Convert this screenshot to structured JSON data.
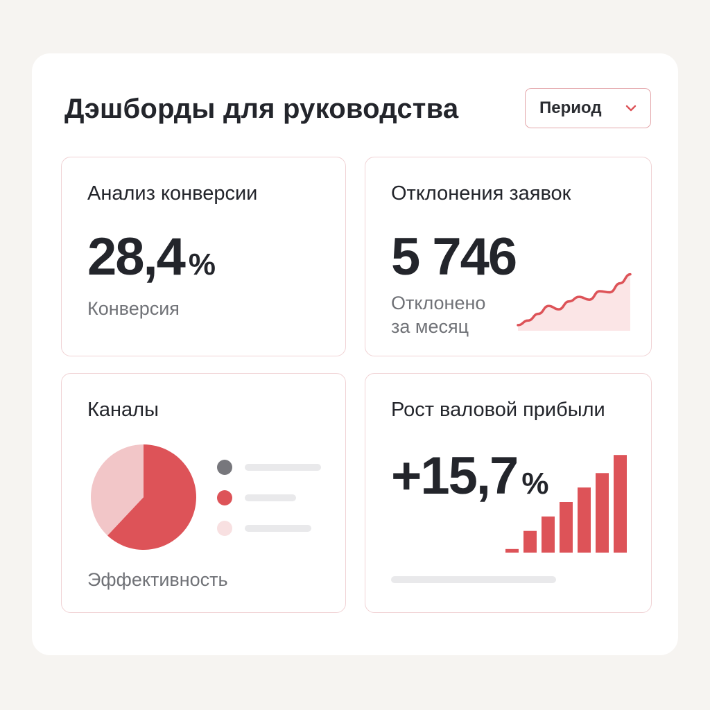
{
  "header": {
    "title": "Дэшборды для руководства",
    "period_label": "Период"
  },
  "colors": {
    "accent": "#dd5358",
    "accent_light": "#f2c6c8",
    "accent_fill": "#fbe5e6",
    "neutral_dot": "#77777c"
  },
  "cards": {
    "conversion": {
      "title": "Анализ конверсии",
      "value": "28,4",
      "unit": "%",
      "caption": "Конверсия"
    },
    "rejections": {
      "title": "Отклонения заявок",
      "value": "5 746",
      "caption_line1": "Отклонено",
      "caption_line2": "за месяц"
    },
    "channels": {
      "title": "Каналы",
      "caption": "Эффективность"
    },
    "gross_profit": {
      "title": "Рост валовой прибыли",
      "value": "+15,7",
      "unit": "%"
    }
  },
  "chart_data": [
    {
      "type": "area",
      "x": [
        1,
        2,
        3,
        4,
        5,
        6,
        7,
        8,
        9,
        10,
        11,
        12
      ],
      "values": [
        10,
        18,
        30,
        44,
        38,
        52,
        60,
        55,
        70,
        68,
        84,
        100
      ],
      "ylim": [
        0,
        140
      ],
      "grid": false
    },
    {
      "type": "pie",
      "values": [
        62,
        38
      ],
      "colors": [
        "#dd5358",
        "#f2c6c8"
      ]
    },
    {
      "type": "bar",
      "values": [
        5,
        30,
        50,
        70,
        90,
        110,
        135
      ],
      "ylim": [
        0,
        140
      ],
      "grid": false
    }
  ]
}
